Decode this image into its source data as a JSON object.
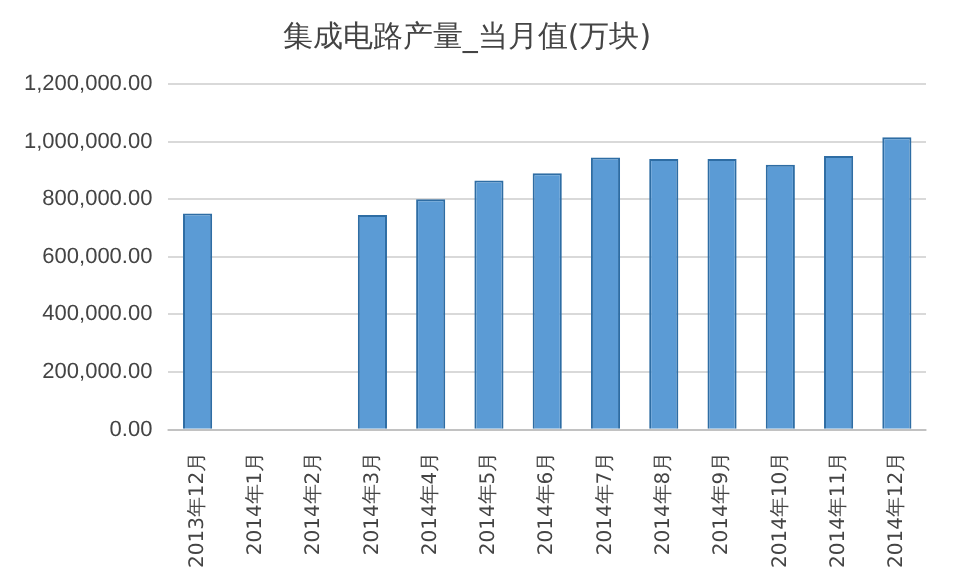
{
  "chart_data": {
    "type": "bar",
    "title": "集成电路产量_当月值(万块)",
    "categories": [
      "2013年12月",
      "2014年1月",
      "2014年2月",
      "2014年3月",
      "2014年4月",
      "2014年5月",
      "2014年6月",
      "2014年7月",
      "2014年8月",
      "2014年9月",
      "2014年10月",
      "2014年11月",
      "2014年12月"
    ],
    "values": [
      750000,
      null,
      null,
      745000,
      800000,
      865000,
      890000,
      945000,
      940000,
      940000,
      920000,
      950000,
      1015000
    ],
    "color": "#5b9bd5",
    "ylim": [
      0,
      1200000
    ],
    "yticks": [
      {
        "value": 0,
        "label": "0.00"
      },
      {
        "value": 200000,
        "label": "200,000.00"
      },
      {
        "value": 400000,
        "label": "400,000.00"
      },
      {
        "value": 600000,
        "label": "600,000.00"
      },
      {
        "value": 800000,
        "label": "800,000.00"
      },
      {
        "value": 1000000,
        "label": "1,000,000.00"
      },
      {
        "value": 1200000,
        "label": "1,200,000.00"
      }
    ],
    "grid": "y",
    "legend": false
  }
}
